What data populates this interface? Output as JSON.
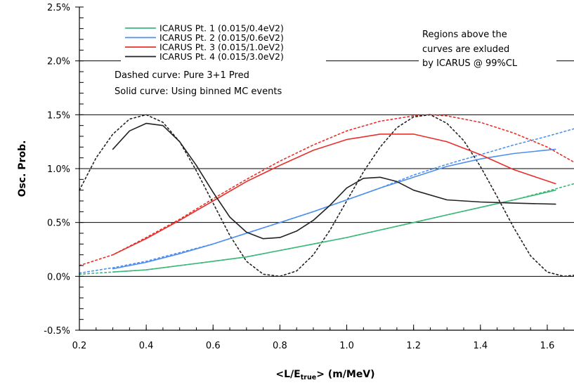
{
  "chart_data": {
    "type": "line",
    "xlabel": "<L/E",
    "xlabel_sub": "true",
    "xlabel_suffix": ">  (m/MeV)",
    "ylabel": "Osc. Prob.",
    "xlim": [
      0.2,
      1.68
    ],
    "ylim": [
      -0.005,
      0.025
    ],
    "x_ticks": [
      {
        "v": 0.2,
        "label": "0.2"
      },
      {
        "v": 0.4,
        "label": "0.4"
      },
      {
        "v": 0.6,
        "label": "0.6"
      },
      {
        "v": 0.8,
        "label": "0.8"
      },
      {
        "v": 1.0,
        "label": "1.0"
      },
      {
        "v": 1.2,
        "label": "1.2"
      },
      {
        "v": 1.4,
        "label": "1.4"
      },
      {
        "v": 1.6,
        "label": "1.6"
      }
    ],
    "y_ticks": [
      {
        "v": -0.005,
        "label": "-0.5%"
      },
      {
        "v": 0.0,
        "label": "0.0%"
      },
      {
        "v": 0.005,
        "label": "0.5%"
      },
      {
        "v": 0.01,
        "label": "1.0%"
      },
      {
        "v": 0.015,
        "label": "1.5%"
      },
      {
        "v": 0.02,
        "label": "2.0%"
      },
      {
        "v": 0.025,
        "label": "2.5%"
      }
    ],
    "gridlines_y": [
      0.0,
      0.005,
      0.01,
      0.015,
      0.02
    ],
    "grid": "horizontal",
    "legend_position": "top-left",
    "legend": [
      {
        "label": "ICARUS Pt. 1 (0.015/0.4eV2)",
        "color": "#3cb878"
      },
      {
        "label": "ICARUS Pt. 2 (0.015/0.6eV2)",
        "color": "#4d8ff0"
      },
      {
        "label": "ICARUS Pt. 3 (0.015/1.0eV2)",
        "color": "#e8302b"
      },
      {
        "label": "ICARUS Pt. 4 (0.015/3.0eV2)",
        "color": "#222222"
      }
    ],
    "notes": [
      "Dashed curve:  Pure 3+1 Pred",
      "Solid curve:  Using binned MC events"
    ],
    "annotation": [
      "Regions above the",
      "curves are exluded",
      "by ICARUS @ 99%CL"
    ],
    "series": [
      {
        "name": "ICARUS Pt. 1 (0.015/0.4eV2)",
        "style": "dashed",
        "color": "#3cb878",
        "x": [
          0.2,
          0.3,
          0.4,
          0.5,
          0.6,
          0.7,
          0.8,
          0.9,
          1.0,
          1.1,
          1.2,
          1.3,
          1.4,
          1.5,
          1.6,
          1.68
        ],
        "y": [
          0.0002,
          0.0004,
          0.0006,
          0.001,
          0.0014,
          0.0018,
          0.0024,
          0.003,
          0.0036,
          0.0043,
          0.005,
          0.0057,
          0.0064,
          0.0071,
          0.0079,
          0.0086
        ]
      },
      {
        "name": "ICARUS Pt. 2 (0.015/0.6eV2)",
        "style": "dashed",
        "color": "#4d8ff0",
        "x": [
          0.2,
          0.3,
          0.4,
          0.5,
          0.6,
          0.7,
          0.8,
          0.9,
          1.0,
          1.1,
          1.2,
          1.3,
          1.4,
          1.5,
          1.6,
          1.68
        ],
        "y": [
          0.0003,
          0.0008,
          0.0014,
          0.0022,
          0.003,
          0.004,
          0.005,
          0.006,
          0.0071,
          0.0082,
          0.0094,
          0.0104,
          0.0113,
          0.0122,
          0.013,
          0.0137
        ]
      },
      {
        "name": "ICARUS Pt. 3 (0.015/1.0eV2)",
        "style": "dashed",
        "color": "#e8302b",
        "x": [
          0.2,
          0.3,
          0.4,
          0.5,
          0.6,
          0.7,
          0.8,
          0.9,
          1.0,
          1.1,
          1.2,
          1.25,
          1.3,
          1.4,
          1.5,
          1.6,
          1.68
        ],
        "y": [
          0.001,
          0.002,
          0.0036,
          0.0053,
          0.0072,
          0.009,
          0.0107,
          0.0122,
          0.0135,
          0.0144,
          0.0149,
          0.015,
          0.0149,
          0.0143,
          0.0133,
          0.012,
          0.0106
        ]
      },
      {
        "name": "ICARUS Pt. 4 (0.015/3.0eV2)",
        "style": "dashed",
        "color": "#222222",
        "x": [
          0.2,
          0.25,
          0.3,
          0.35,
          0.4,
          0.45,
          0.5,
          0.55,
          0.6,
          0.65,
          0.7,
          0.75,
          0.8,
          0.85,
          0.9,
          0.95,
          1.0,
          1.05,
          1.1,
          1.15,
          1.2,
          1.25,
          1.3,
          1.35,
          1.4,
          1.45,
          1.5,
          1.55,
          1.6,
          1.65,
          1.68
        ],
        "y": [
          0.008,
          0.011,
          0.0132,
          0.0146,
          0.015,
          0.0143,
          0.0125,
          0.0098,
          0.0068,
          0.0038,
          0.0014,
          0.0002,
          0.0,
          0.0005,
          0.002,
          0.0043,
          0.007,
          0.0097,
          0.012,
          0.0138,
          0.0148,
          0.015,
          0.0142,
          0.0126,
          0.0102,
          0.0074,
          0.0045,
          0.0019,
          0.0004,
          0.0,
          0.0001
        ]
      },
      {
        "name": "ICARUS Pt. 1 (0.015/0.4eV2)",
        "style": "solid",
        "color": "#3cb878",
        "x": [
          0.3,
          0.4,
          0.5,
          0.6,
          0.7,
          0.8,
          0.9,
          1.0,
          1.1,
          1.2,
          1.3,
          1.4,
          1.5,
          1.625
        ],
        "y": [
          0.0004,
          0.0006,
          0.001,
          0.0014,
          0.0018,
          0.0024,
          0.003,
          0.0036,
          0.0043,
          0.005,
          0.0057,
          0.0064,
          0.0071,
          0.008
        ]
      },
      {
        "name": "ICARUS Pt. 2 (0.015/0.6eV2)",
        "style": "solid",
        "color": "#4d8ff0",
        "x": [
          0.3,
          0.4,
          0.5,
          0.6,
          0.7,
          0.8,
          0.9,
          1.0,
          1.1,
          1.2,
          1.3,
          1.4,
          1.5,
          1.625
        ],
        "y": [
          0.0007,
          0.0013,
          0.0021,
          0.003,
          0.004,
          0.005,
          0.006,
          0.0071,
          0.0082,
          0.0092,
          0.0102,
          0.0109,
          0.0114,
          0.0118
        ]
      },
      {
        "name": "ICARUS Pt. 3 (0.015/1.0eV2)",
        "style": "solid",
        "color": "#e8302b",
        "x": [
          0.3,
          0.4,
          0.5,
          0.6,
          0.7,
          0.8,
          0.9,
          1.0,
          1.1,
          1.2,
          1.3,
          1.4,
          1.5,
          1.625
        ],
        "y": [
          0.002,
          0.0035,
          0.0052,
          0.007,
          0.0088,
          0.0103,
          0.0117,
          0.0127,
          0.0132,
          0.0132,
          0.0125,
          0.0113,
          0.0099,
          0.0086
        ]
      },
      {
        "name": "ICARUS Pt. 4 (0.015/3.0eV2)",
        "style": "solid",
        "color": "#222222",
        "x": [
          0.3,
          0.35,
          0.4,
          0.45,
          0.5,
          0.55,
          0.6,
          0.65,
          0.7,
          0.75,
          0.8,
          0.85,
          0.9,
          0.95,
          1.0,
          1.05,
          1.1,
          1.15,
          1.2,
          1.3,
          1.4,
          1.5,
          1.625
        ],
        "y": [
          0.0118,
          0.0135,
          0.0142,
          0.014,
          0.0125,
          0.0103,
          0.0078,
          0.0055,
          0.0041,
          0.0035,
          0.0036,
          0.0042,
          0.0052,
          0.0066,
          0.0082,
          0.0091,
          0.0092,
          0.0088,
          0.008,
          0.0071,
          0.0069,
          0.0068,
          0.0067
        ]
      }
    ]
  }
}
